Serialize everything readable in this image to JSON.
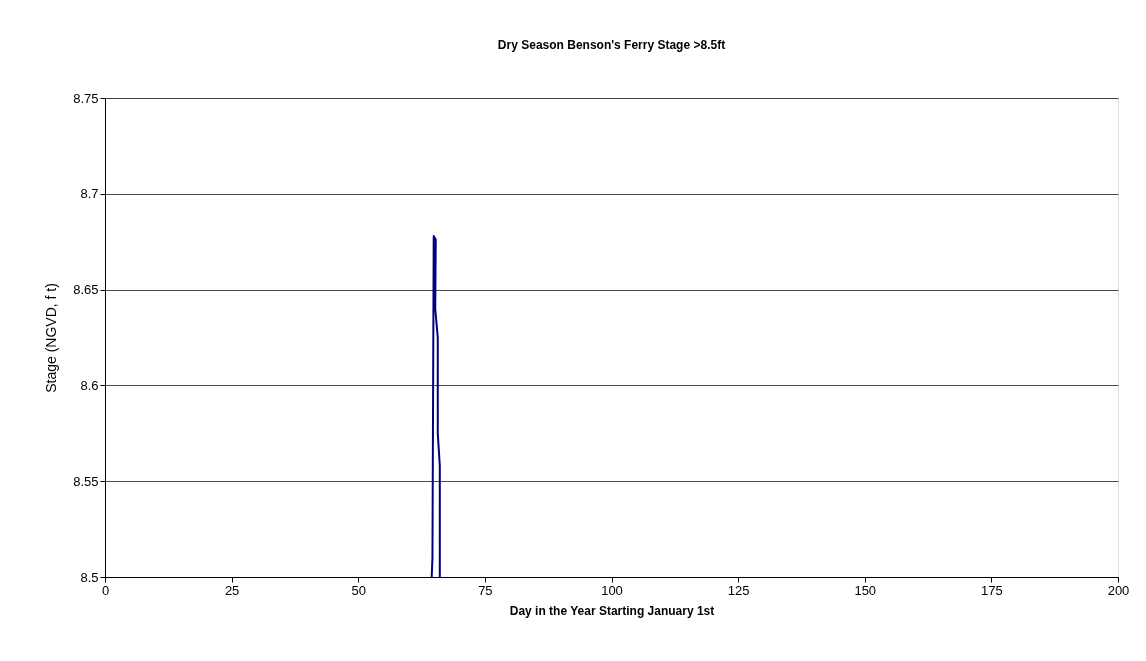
{
  "chart_data": {
    "type": "line",
    "title": "Dry Season Benson's Ferry Stage >8.5ft",
    "xlabel": "Day in the Year Starting January 1st",
    "ylabel": "Stage (NGVD, f t)",
    "series": [
      {
        "color": "#000080",
        "x": [
          64.5,
          64.65,
          64.9,
          65.3,
          65.2,
          65.7,
          65.7,
          66.1,
          66.1
        ],
        "values": [
          8.5,
          8.51,
          8.678,
          8.676,
          8.64,
          8.625,
          8.575,
          8.558,
          8.5
        ]
      }
    ],
    "xlim": [
      0,
      200
    ],
    "xticks": [
      0,
      25,
      50,
      75,
      100,
      125,
      150,
      175,
      200
    ],
    "ylim": [
      8.5,
      8.75
    ],
    "yticks": [
      8.5,
      8.55,
      8.6,
      8.65,
      8.7,
      8.75
    ],
    "grid": "y",
    "legend": false,
    "marker": "none",
    "line_style": "solid"
  }
}
